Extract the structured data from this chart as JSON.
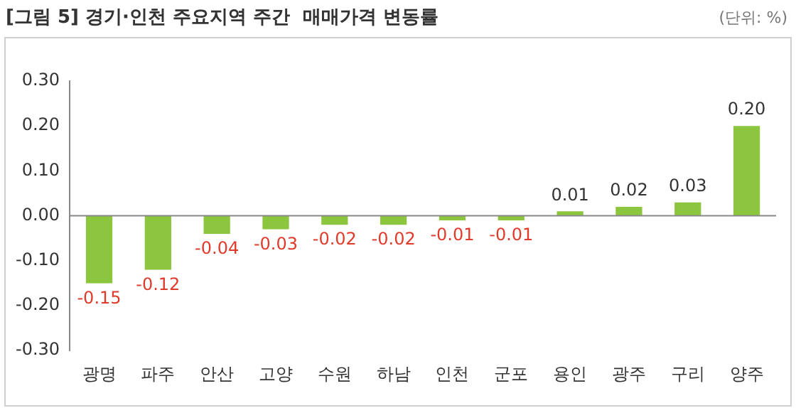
{
  "chart_data": {
    "type": "bar",
    "title": "[그림 5] 경기·인천 주요지역 주간  매매가격 변동률",
    "annotations": [
      "(단위: %)"
    ],
    "categories": [
      "광명",
      "파주",
      "안산",
      "고양",
      "수원",
      "하남",
      "인천",
      "군포",
      "용인",
      "광주",
      "구리",
      "양주"
    ],
    "values": [
      -0.15,
      -0.12,
      -0.04,
      -0.03,
      -0.02,
      -0.02,
      -0.01,
      -0.01,
      0.01,
      0.02,
      0.03,
      0.2
    ],
    "value_labels": [
      "-0.15",
      "-0.12",
      "-0.04",
      "-0.03",
      "-0.02",
      "-0.02",
      "-0.01",
      "-0.01",
      "0.01",
      "0.02",
      "0.03",
      "0.20"
    ],
    "color": "#8cc63e",
    "ylim": [
      -0.3,
      0.3
    ],
    "yticks": [
      {
        "value": -0.3,
        "label": "-0.30"
      },
      {
        "value": -0.2,
        "label": "-0.20"
      },
      {
        "value": -0.1,
        "label": "-0.10"
      },
      {
        "value": 0,
        "label": "0.00"
      },
      {
        "value": 0.1,
        "label": "0.10"
      },
      {
        "value": 0.2,
        "label": "0.20"
      },
      {
        "value": 0.3,
        "label": "0.30"
      }
    ],
    "ref_lines": [
      {
        "axis": "y",
        "value": 0,
        "color": "#888888"
      }
    ],
    "grid": false,
    "legend": false
  }
}
